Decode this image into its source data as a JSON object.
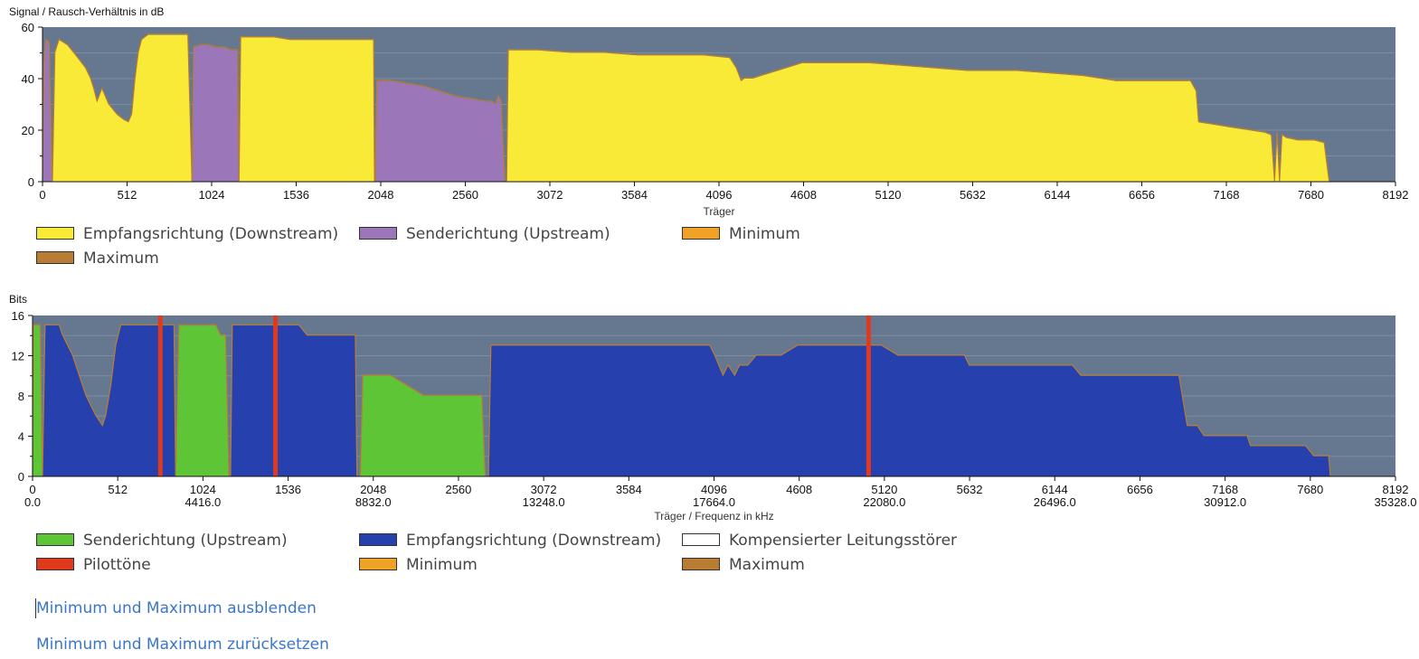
{
  "colors": {
    "plot_bg": "#66788f",
    "grid": "#7d8ea3",
    "downstream_snr": "#f8ea37",
    "upstream_snr": "#9b76b8",
    "downstream_bits": "#2640ae",
    "upstream_bits": "#5ec636",
    "pilot": "#e03a1e",
    "minimum": "#f0a227",
    "maximum": "#b87d32",
    "compensated": "#ffffff",
    "link": "#3a76c8"
  },
  "chart_data": [
    {
      "id": "snr",
      "type": "area",
      "title": "Signal / Rausch-Verhältnis in dB",
      "xlabel": "Träger",
      "ylabel": "",
      "xlim": [
        0,
        8192
      ],
      "ylim": [
        0,
        60
      ],
      "xticks": [
        0,
        512,
        1024,
        1536,
        2048,
        2560,
        3072,
        3584,
        4096,
        4608,
        5120,
        5632,
        6144,
        6656,
        7168,
        7680,
        8192
      ],
      "yticks": [
        0,
        20,
        40,
        60
      ],
      "grid": true,
      "series": [
        {
          "name": "Senderichtung (Upstream)",
          "color_key": "upstream_snr",
          "points": [
            [
              0,
              0
            ],
            [
              8,
              45
            ],
            [
              20,
              55
            ],
            [
              40,
              54
            ],
            [
              55,
              10
            ],
            [
              60,
              0
            ]
          ]
        },
        {
          "name": "Empfangsrichtung (Downstream)",
          "color_key": "downstream_snr",
          "points": [
            [
              60,
              0
            ],
            [
              75,
              50
            ],
            [
              100,
              55
            ],
            [
              150,
              53
            ],
            [
              200,
              49
            ],
            [
              260,
              44
            ],
            [
              290,
              40
            ],
            [
              310,
              36
            ],
            [
              330,
              31
            ],
            [
              360,
              36
            ],
            [
              400,
              30
            ],
            [
              450,
              26
            ],
            [
              490,
              24
            ],
            [
              520,
              23
            ],
            [
              540,
              26
            ],
            [
              560,
              40
            ],
            [
              580,
              50
            ],
            [
              600,
              55
            ],
            [
              640,
              57
            ],
            [
              700,
              57
            ],
            [
              860,
              57
            ],
            [
              880,
              57
            ],
            [
              905,
              0
            ]
          ]
        },
        {
          "name": "Senderichtung (Upstream)",
          "color_key": "upstream_snr",
          "points": [
            [
              905,
              0
            ],
            [
              915,
              52
            ],
            [
              960,
              53
            ],
            [
              1000,
              53
            ],
            [
              1050,
              52
            ],
            [
              1100,
              52
            ],
            [
              1140,
              51
            ],
            [
              1180,
              51
            ],
            [
              1190,
              0
            ]
          ]
        },
        {
          "name": "Empfangsrichtung (Downstream)",
          "color_key": "downstream_snr",
          "points": [
            [
              1190,
              0
            ],
            [
              1200,
              56
            ],
            [
              1300,
              56
            ],
            [
              1400,
              56
            ],
            [
              1500,
              55
            ],
            [
              1600,
              55
            ],
            [
              1700,
              55
            ],
            [
              1800,
              55
            ],
            [
              2005,
              55
            ],
            [
              2010,
              0
            ]
          ]
        },
        {
          "name": "Senderichtung (Upstream)",
          "color_key": "upstream_snr",
          "points": [
            [
              2015,
              0
            ],
            [
              2025,
              39
            ],
            [
              2100,
              39
            ],
            [
              2200,
              38
            ],
            [
              2300,
              37
            ],
            [
              2400,
              35
            ],
            [
              2500,
              33
            ],
            [
              2600,
              32
            ],
            [
              2680,
              31
            ],
            [
              2720,
              31
            ],
            [
              2745,
              30
            ],
            [
              2760,
              33
            ],
            [
              2775,
              31
            ],
            [
              2800,
              0
            ]
          ]
        },
        {
          "name": "Empfangsrichtung (Downstream)",
          "color_key": "downstream_snr",
          "points": [
            [
              2810,
              0
            ],
            [
              2820,
              51
            ],
            [
              3000,
              51
            ],
            [
              3200,
              50
            ],
            [
              3400,
              50
            ],
            [
              3600,
              49
            ],
            [
              3800,
              49
            ],
            [
              4000,
              49
            ],
            [
              4160,
              48
            ],
            [
              4200,
              44
            ],
            [
              4230,
              39
            ],
            [
              4250,
              40
            ],
            [
              4300,
              40
            ],
            [
              4400,
              42
            ],
            [
              4500,
              44
            ],
            [
              4600,
              46
            ],
            [
              4800,
              46
            ],
            [
              5000,
              46
            ],
            [
              5200,
              45
            ],
            [
              5400,
              44
            ],
            [
              5600,
              43
            ],
            [
              5900,
              43
            ],
            [
              6100,
              42
            ],
            [
              6300,
              41
            ],
            [
              6500,
              39
            ],
            [
              6800,
              39
            ],
            [
              6950,
              39
            ],
            [
              6985,
              35
            ],
            [
              7000,
              23
            ],
            [
              7100,
              22
            ],
            [
              7200,
              21
            ],
            [
              7300,
              20
            ],
            [
              7400,
              19
            ],
            [
              7440,
              18
            ],
            [
              7460,
              0
            ],
            [
              7475,
              19
            ],
            [
              7490,
              0
            ],
            [
              7505,
              18
            ],
            [
              7530,
              17
            ],
            [
              7600,
              16
            ],
            [
              7700,
              16
            ],
            [
              7760,
              15
            ],
            [
              7790,
              0
            ]
          ]
        }
      ],
      "legend": [
        {
          "label": "Empfangsrichtung (Downstream)",
          "color_key": "downstream_snr"
        },
        {
          "label": "Senderichtung (Upstream)",
          "color_key": "upstream_snr"
        },
        {
          "label": "Minimum",
          "color_key": "minimum"
        },
        {
          "label": "Maximum",
          "color_key": "maximum"
        }
      ]
    },
    {
      "id": "bits",
      "type": "area",
      "title": "Bits",
      "xlabel": "Träger / Frequenz in kHz",
      "ylabel": "",
      "xlim": [
        0,
        8192
      ],
      "ylim": [
        0,
        16
      ],
      "xticks": [
        0,
        512,
        1024,
        1536,
        2048,
        2560,
        3072,
        3584,
        4096,
        4608,
        5120,
        5632,
        6144,
        6656,
        7168,
        7680,
        8192
      ],
      "xticks_secondary": [
        {
          "x": 0,
          "label": "0.0"
        },
        {
          "x": 1024,
          "label": "4416.0"
        },
        {
          "x": 2048,
          "label": "8832.0"
        },
        {
          "x": 3072,
          "label": "13248.0"
        },
        {
          "x": 4096,
          "label": "17664.0"
        },
        {
          "x": 5120,
          "label": "22080.0"
        },
        {
          "x": 6144,
          "label": "26496.0"
        },
        {
          "x": 7168,
          "label": "30912.0"
        },
        {
          "x": 8192,
          "label": "35328.0"
        }
      ],
      "yticks": [
        0,
        4,
        8,
        12,
        16
      ],
      "grid": true,
      "series": [
        {
          "name": "Senderichtung (Upstream)",
          "color_key": "upstream_bits",
          "points": [
            [
              0,
              0
            ],
            [
              5,
              15
            ],
            [
              45,
              15
            ],
            [
              60,
              0
            ]
          ]
        },
        {
          "name": "Empfangsrichtung (Downstream)",
          "color_key": "downstream_bits",
          "points": [
            [
              60,
              0
            ],
            [
              75,
              15
            ],
            [
              160,
              15
            ],
            [
              180,
              14
            ],
            [
              210,
              13
            ],
            [
              240,
              12
            ],
            [
              260,
              11
            ],
            [
              280,
              10
            ],
            [
              300,
              9
            ],
            [
              320,
              8
            ],
            [
              350,
              7
            ],
            [
              380,
              6
            ],
            [
              420,
              5
            ],
            [
              440,
              6
            ],
            [
              470,
              9
            ],
            [
              500,
              13
            ],
            [
              530,
              15
            ],
            [
              560,
              15
            ],
            [
              780,
              15
            ],
            [
              830,
              15
            ],
            [
              850,
              15
            ],
            [
              860,
              0
            ]
          ]
        },
        {
          "name": "Senderichtung (Upstream)",
          "color_key": "upstream_bits",
          "points": [
            [
              860,
              0
            ],
            [
              880,
              15
            ],
            [
              1100,
              15
            ],
            [
              1130,
              14
            ],
            [
              1160,
              14
            ],
            [
              1180,
              0
            ]
          ]
        },
        {
          "name": "Empfangsrichtung (Downstream)",
          "color_key": "downstream_bits",
          "points": [
            [
              1190,
              0
            ],
            [
              1200,
              15
            ],
            [
              1600,
              15
            ],
            [
              1650,
              14
            ],
            [
              1940,
              14
            ],
            [
              1950,
              0
            ]
          ]
        },
        {
          "name": "Senderichtung (Upstream)",
          "color_key": "upstream_bits",
          "points": [
            [
              1970,
              0
            ],
            [
              1985,
              10
            ],
            [
              2150,
              10
            ],
            [
              2250,
              9
            ],
            [
              2350,
              8
            ],
            [
              2500,
              8
            ],
            [
              2700,
              8
            ],
            [
              2720,
              0
            ]
          ]
        },
        {
          "name": "Empfangsrichtung (Downstream)",
          "color_key": "downstream_bits",
          "points": [
            [
              2740,
              0
            ],
            [
              2755,
              13
            ],
            [
              3000,
              13
            ],
            [
              3200,
              13
            ],
            [
              3400,
              13
            ],
            [
              3600,
              13
            ],
            [
              3800,
              13
            ],
            [
              4000,
              13
            ],
            [
              4070,
              13
            ],
            [
              4100,
              12
            ],
            [
              4150,
              10
            ],
            [
              4180,
              11
            ],
            [
              4220,
              10
            ],
            [
              4250,
              11
            ],
            [
              4300,
              11
            ],
            [
              4350,
              12
            ],
            [
              4500,
              12
            ],
            [
              4600,
              13
            ],
            [
              4800,
              13
            ],
            [
              5050,
              13
            ],
            [
              5100,
              13
            ],
            [
              5200,
              12
            ],
            [
              5400,
              12
            ],
            [
              5600,
              12
            ],
            [
              5630,
              11
            ],
            [
              6000,
              11
            ],
            [
              6250,
              11
            ],
            [
              6300,
              10
            ],
            [
              6800,
              10
            ],
            [
              6890,
              10
            ],
            [
              6920,
              7
            ],
            [
              6940,
              5
            ],
            [
              7000,
              5
            ],
            [
              7040,
              4
            ],
            [
              7200,
              4
            ],
            [
              7300,
              4
            ],
            [
              7320,
              3
            ],
            [
              7500,
              3
            ],
            [
              7650,
              3
            ],
            [
              7700,
              2
            ],
            [
              7790,
              2
            ],
            [
              7800,
              0
            ]
          ]
        },
        {
          "name": "Pilottöne",
          "color_key": "pilot",
          "type": "markers",
          "x": [
            768,
            1460,
            5025
          ]
        }
      ],
      "legend": [
        {
          "label": "Senderichtung (Upstream)",
          "color_key": "upstream_bits"
        },
        {
          "label": "Empfangsrichtung (Downstream)",
          "color_key": "downstream_bits"
        },
        {
          "label": "Kompensierter Leitungsstörer",
          "color_key": "compensated"
        },
        {
          "label": "Pilottöne",
          "color_key": "pilot"
        },
        {
          "label": "Minimum",
          "color_key": "minimum"
        },
        {
          "label": "Maximum",
          "color_key": "maximum"
        }
      ]
    }
  ],
  "links": {
    "hide_minmax": "Minimum und Maximum ausblenden",
    "reset_minmax": "Minimum und Maximum zurücksetzen"
  }
}
